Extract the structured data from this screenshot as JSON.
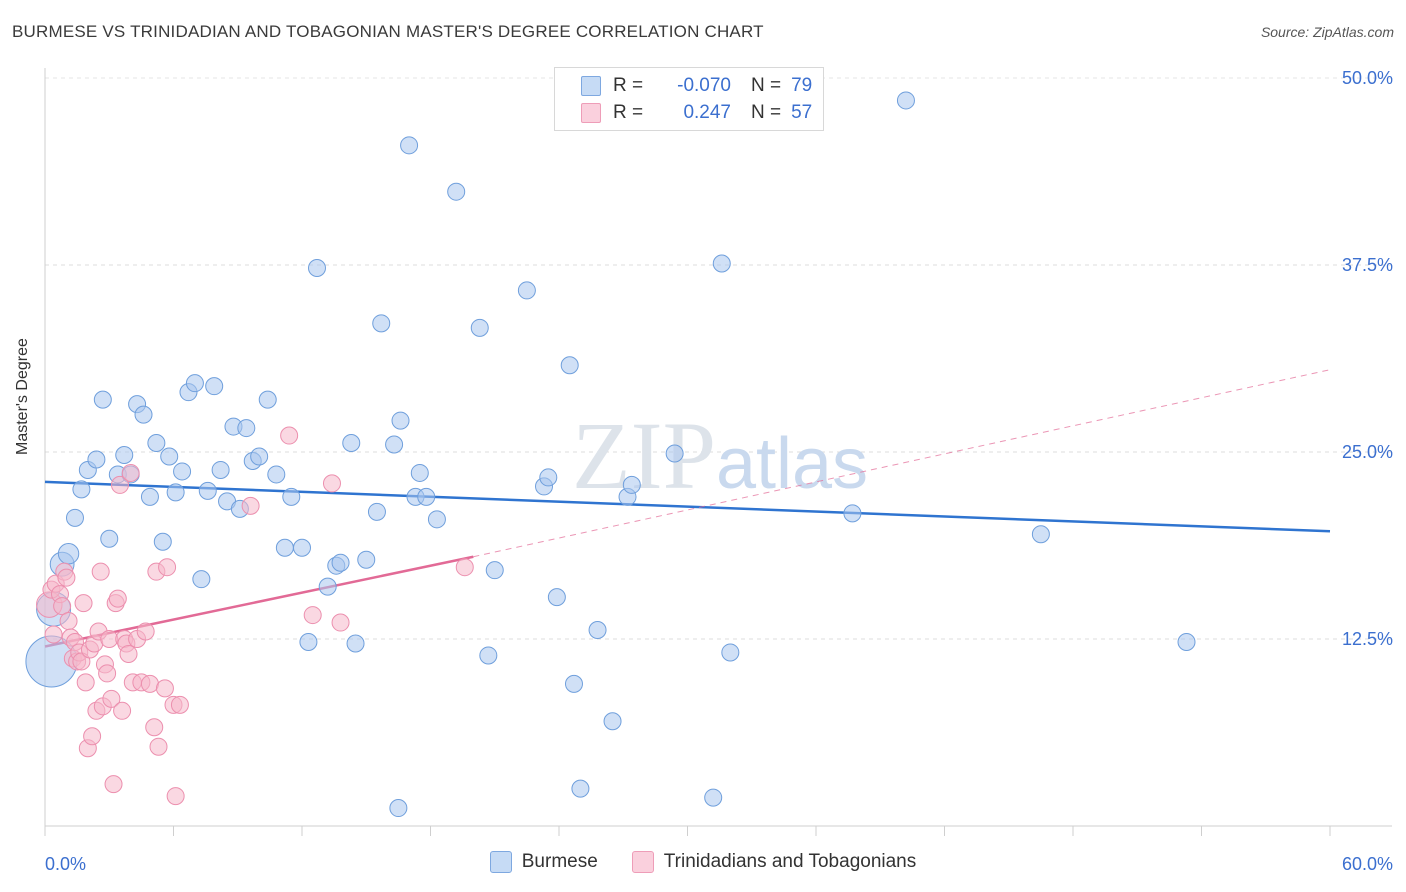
{
  "title": "BURMESE VS TRINIDADIAN AND TOBAGONIAN MASTER'S DEGREE CORRELATION CHART",
  "source": "Source: ZipAtlas.com",
  "watermark": "ZIPatlas",
  "legend": {
    "rows": [
      {
        "r_label": "R =",
        "r_value": "-0.070",
        "n_label": "N =",
        "n_value": "79",
        "color": "#a9c7ee"
      },
      {
        "r_label": "R =",
        "r_value": "0.247",
        "n_label": "N =",
        "n_value": "57",
        "color": "#f5b8cb"
      }
    ]
  },
  "bottom_legend": [
    {
      "label": "Burmese",
      "color": "#a9c7ee"
    },
    {
      "label": "Trinidadians and Tobagonians",
      "color": "#f5b8cb"
    }
  ],
  "chart_data": {
    "type": "scatter",
    "title": "BURMESE VS TRINIDADIAN AND TOBAGONIAN MASTER'S DEGREE CORRELATION CHART",
    "xlabel": "",
    "ylabel": "Master's Degree",
    "xlim": [
      0,
      60
    ],
    "ylim": [
      0,
      50
    ],
    "x_tick_labels": [
      "0.0%",
      "60.0%"
    ],
    "y_tick_labels": [
      "12.5%",
      "25.0%",
      "37.5%",
      "50.0%"
    ],
    "y_ticks": [
      12.5,
      25.0,
      37.5,
      50.0
    ],
    "grid": true,
    "legend_position": "top-center",
    "series": [
      {
        "name": "Burmese",
        "color": "#a9c7ee",
        "stroke": "#6f9fdc",
        "trend": {
          "x": [
            0,
            60
          ],
          "y": [
            23.0,
            19.7
          ],
          "color": "#2f74d0",
          "dashed_extension": false
        },
        "points": [
          [
            0.3,
            11.0,
            3
          ],
          [
            0.4,
            14.5,
            2
          ],
          [
            0.8,
            17.5,
            1.4
          ],
          [
            1.1,
            18.2,
            1.2
          ],
          [
            1.4,
            20.6,
            1
          ],
          [
            1.7,
            22.5,
            1
          ],
          [
            2.0,
            23.8,
            1
          ],
          [
            2.4,
            24.5,
            1
          ],
          [
            2.7,
            28.5,
            1
          ],
          [
            3.0,
            19.2,
            1
          ],
          [
            3.4,
            23.5,
            1
          ],
          [
            3.7,
            24.8,
            1
          ],
          [
            4.0,
            23.5,
            1
          ],
          [
            4.3,
            28.2,
            1
          ],
          [
            4.6,
            27.5,
            1
          ],
          [
            4.9,
            22.0,
            1
          ],
          [
            5.2,
            25.6,
            1
          ],
          [
            5.5,
            19.0,
            1
          ],
          [
            5.8,
            24.7,
            1
          ],
          [
            6.1,
            22.3,
            1
          ],
          [
            6.4,
            23.7,
            1
          ],
          [
            6.7,
            29.0,
            1
          ],
          [
            7.0,
            29.6,
            1
          ],
          [
            7.3,
            16.5,
            1
          ],
          [
            7.6,
            22.4,
            1
          ],
          [
            7.9,
            29.4,
            1
          ],
          [
            8.2,
            23.8,
            1
          ],
          [
            8.5,
            21.7,
            1
          ],
          [
            8.8,
            26.7,
            1
          ],
          [
            9.1,
            21.2,
            1
          ],
          [
            9.4,
            26.6,
            1
          ],
          [
            9.7,
            24.4,
            1
          ],
          [
            10.0,
            24.7,
            1
          ],
          [
            10.4,
            28.5,
            1
          ],
          [
            10.8,
            23.5,
            1
          ],
          [
            11.2,
            18.6,
            1
          ],
          [
            11.5,
            22.0,
            1
          ],
          [
            12.0,
            18.6,
            1
          ],
          [
            12.3,
            12.3,
            1
          ],
          [
            12.7,
            37.3,
            1
          ],
          [
            13.2,
            16.0,
            1
          ],
          [
            13.6,
            17.4,
            1
          ],
          [
            13.8,
            17.6,
            1
          ],
          [
            14.3,
            25.6,
            1
          ],
          [
            14.5,
            12.2,
            1
          ],
          [
            15.0,
            17.8,
            1
          ],
          [
            15.5,
            21.0,
            1
          ],
          [
            15.7,
            33.6,
            1
          ],
          [
            16.3,
            25.5,
            1
          ],
          [
            16.5,
            1.2,
            1
          ],
          [
            16.6,
            27.1,
            1
          ],
          [
            17.3,
            22.0,
            1
          ],
          [
            17.0,
            45.5,
            1
          ],
          [
            17.5,
            23.6,
            1
          ],
          [
            17.8,
            22.0,
            1
          ],
          [
            18.3,
            20.5,
            1
          ],
          [
            19.2,
            42.4,
            1
          ],
          [
            20.3,
            33.3,
            1
          ],
          [
            20.7,
            11.4,
            1
          ],
          [
            21.0,
            17.1,
            1
          ],
          [
            22.5,
            35.8,
            1
          ],
          [
            23.3,
            22.7,
            1
          ],
          [
            23.5,
            23.3,
            1
          ],
          [
            23.9,
            15.3,
            1
          ],
          [
            24.5,
            30.8,
            1
          ],
          [
            24.7,
            9.5,
            1
          ],
          [
            25.0,
            2.5,
            1
          ],
          [
            25.8,
            13.1,
            1
          ],
          [
            26.5,
            7.0,
            1
          ],
          [
            27.2,
            22.0,
            1
          ],
          [
            27.4,
            22.8,
            1
          ],
          [
            29.4,
            24.9,
            1
          ],
          [
            31.2,
            1.9,
            1
          ],
          [
            31.6,
            37.6,
            1
          ],
          [
            32.0,
            11.6,
            1
          ],
          [
            37.7,
            20.9,
            1
          ],
          [
            40.2,
            48.5,
            1
          ],
          [
            46.5,
            19.5,
            1
          ],
          [
            53.3,
            12.3,
            1
          ]
        ]
      },
      {
        "name": "Trinidadians and Tobagonians",
        "color": "#f5b8cb",
        "stroke": "#ec8fae",
        "trend": {
          "x": [
            0,
            20
          ],
          "y": [
            12.0,
            18.0
          ],
          "color": "#e26a96",
          "dashed_extension": true,
          "extension_to": [
            60,
            30.5
          ]
        },
        "points": [
          [
            0.2,
            14.8,
            1.5
          ],
          [
            0.3,
            15.8,
            1
          ],
          [
            0.4,
            12.8,
            1
          ],
          [
            0.5,
            16.2,
            1
          ],
          [
            0.7,
            15.5,
            1
          ],
          [
            0.8,
            14.7,
            1
          ],
          [
            0.9,
            17.0,
            1
          ],
          [
            1.0,
            16.6,
            1
          ],
          [
            1.1,
            13.7,
            1
          ],
          [
            1.2,
            12.6,
            1
          ],
          [
            1.3,
            11.2,
            1
          ],
          [
            1.4,
            12.3,
            1
          ],
          [
            1.5,
            11.0,
            1
          ],
          [
            1.6,
            11.6,
            1
          ],
          [
            1.7,
            11.0,
            1
          ],
          [
            1.8,
            14.9,
            1
          ],
          [
            1.9,
            9.6,
            1
          ],
          [
            2.0,
            5.2,
            1
          ],
          [
            2.1,
            11.8,
            1
          ],
          [
            2.2,
            6.0,
            1
          ],
          [
            2.3,
            12.2,
            1
          ],
          [
            2.4,
            7.7,
            1
          ],
          [
            2.5,
            13.0,
            1
          ],
          [
            2.6,
            17.0,
            1
          ],
          [
            2.7,
            8.0,
            1
          ],
          [
            2.8,
            10.8,
            1
          ],
          [
            2.9,
            10.2,
            1
          ],
          [
            3.0,
            12.5,
            1
          ],
          [
            3.1,
            8.5,
            1
          ],
          [
            3.2,
            2.8,
            1
          ],
          [
            3.3,
            14.9,
            1
          ],
          [
            3.4,
            15.2,
            1
          ],
          [
            3.5,
            22.8,
            1
          ],
          [
            3.6,
            7.7,
            1
          ],
          [
            3.7,
            12.5,
            1
          ],
          [
            3.8,
            12.2,
            1
          ],
          [
            3.9,
            11.5,
            1
          ],
          [
            4.0,
            23.6,
            1
          ],
          [
            4.1,
            9.6,
            1
          ],
          [
            4.3,
            12.5,
            1
          ],
          [
            4.5,
            9.6,
            1
          ],
          [
            4.7,
            13.0,
            1
          ],
          [
            4.9,
            9.5,
            1
          ],
          [
            5.1,
            6.6,
            1
          ],
          [
            5.2,
            17.0,
            1
          ],
          [
            5.3,
            5.3,
            1
          ],
          [
            5.6,
            9.2,
            1
          ],
          [
            5.7,
            17.3,
            1
          ],
          [
            6.0,
            8.1,
            1
          ],
          [
            6.1,
            2.0,
            1
          ],
          [
            6.3,
            8.1,
            1
          ],
          [
            9.6,
            21.4,
            1
          ],
          [
            11.4,
            26.1,
            1
          ],
          [
            12.5,
            14.1,
            1
          ],
          [
            13.4,
            22.9,
            1
          ],
          [
            13.8,
            13.6,
            1
          ],
          [
            19.6,
            17.3,
            1
          ]
        ]
      }
    ]
  }
}
